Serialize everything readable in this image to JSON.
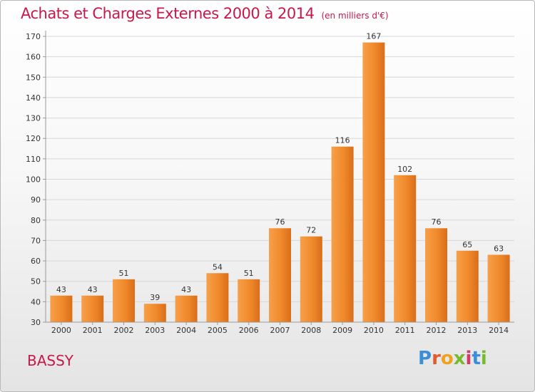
{
  "title": "Achats et Charges Externes 2000 à 2014",
  "unit_note": "(en milliers d'€)",
  "place_name": "BASSY",
  "logo": {
    "letters": [
      "P",
      "r",
      "o",
      "x",
      "i",
      "t",
      "i"
    ],
    "colors": [
      "#3a8fd6",
      "#e35b2b",
      "#f0a21c",
      "#79b92f",
      "#d43a6a",
      "#3a8fd6",
      "#79b92f"
    ]
  },
  "chart_data": {
    "type": "bar",
    "title": "Achats et Charges Externes 2000 à 2014",
    "categories": [
      "2000",
      "2001",
      "2002",
      "2003",
      "2004",
      "2005",
      "2006",
      "2007",
      "2008",
      "2009",
      "2010",
      "2011",
      "2012",
      "2013",
      "2014"
    ],
    "values": [
      43,
      43,
      51,
      39,
      43,
      54,
      51,
      76,
      72,
      116,
      167,
      102,
      76,
      65,
      63
    ],
    "ylim": [
      30,
      170
    ],
    "yticks": [
      30,
      40,
      50,
      60,
      70,
      80,
      90,
      100,
      110,
      120,
      130,
      140,
      150,
      160,
      170
    ],
    "xlabel": "",
    "ylabel": "",
    "grid": true,
    "bar_color": "#f08a2a"
  }
}
